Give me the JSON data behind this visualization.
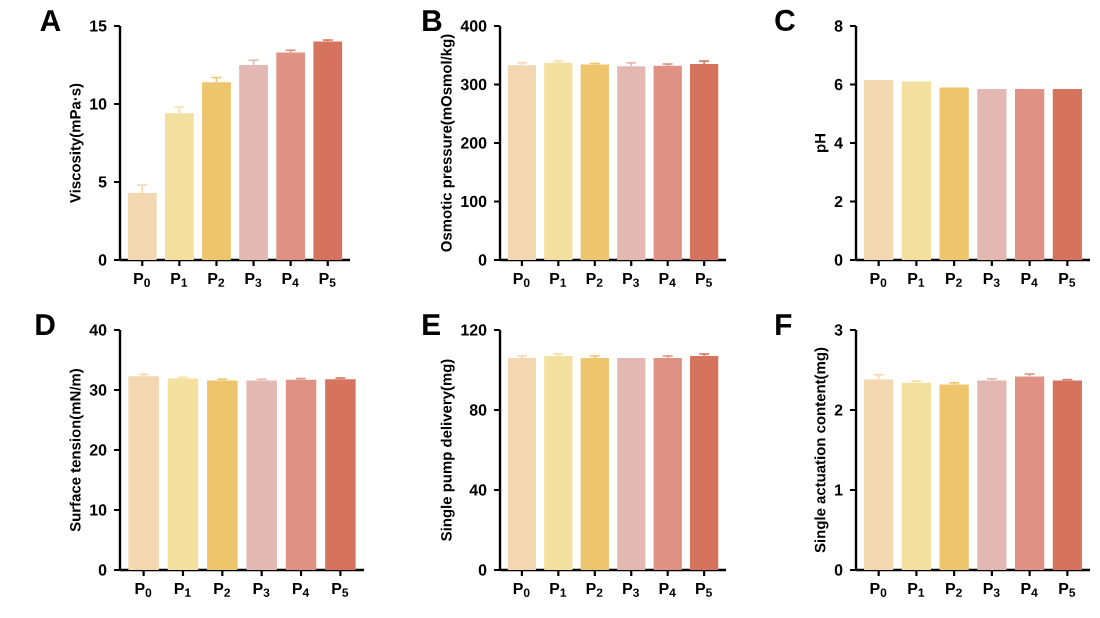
{
  "chart_data": [
    {
      "type": "bar",
      "title": "A",
      "ylabel": "Viscosity(mPa·s)",
      "categories": [
        "P$_{0}$",
        "P$_{1}$",
        "P$_{2}$",
        "P$_{3}$",
        "P$_{4}$",
        "P$_{5}$"
      ],
      "values": [
        4.3,
        9.4,
        11.4,
        12.5,
        13.3,
        14.0
      ],
      "errors": [
        0.5,
        0.4,
        0.3,
        0.3,
        0.15,
        0.1
      ],
      "colors": [
        "#f3d7b0",
        "#f3e09e",
        "#eec46c",
        "#e3b8b3",
        "#df9283",
        "#d6735f"
      ],
      "ylim": [
        0,
        15
      ],
      "yticks": [
        0,
        5,
        10,
        15
      ]
    },
    {
      "type": "bar",
      "title": "B",
      "ylabel": "Osmotic pressure(mOsmol/kg)",
      "categories": [
        "P$_{0}$",
        "P$_{1}$",
        "P$_{2}$",
        "P$_{3}$",
        "P$_{4}$",
        "P$_{5}$"
      ],
      "values": [
        333,
        337,
        334,
        331,
        332,
        335
      ],
      "errors": [
        4,
        3,
        2,
        6,
        3,
        5
      ],
      "colors": [
        "#f3d7b0",
        "#f3e09e",
        "#eec46c",
        "#e3b8b3",
        "#df9283",
        "#d6735f"
      ],
      "ylim": [
        0,
        400
      ],
      "yticks": [
        0,
        100,
        200,
        300,
        400
      ]
    },
    {
      "type": "bar",
      "title": "C",
      "ylabel": "pH",
      "categories": [
        "P$_{0}$",
        "P$_{1}$",
        "P$_{2}$",
        "P$_{3}$",
        "P$_{4}$",
        "P$_{5}$"
      ],
      "values": [
        6.15,
        6.1,
        5.9,
        5.85,
        5.85,
        5.85
      ],
      "colors": [
        "#f3d7b0",
        "#f3e09e",
        "#eec46c",
        "#e3b8b3",
        "#df9283",
        "#d6735f"
      ],
      "ylim": [
        0,
        8
      ],
      "yticks": [
        0,
        2,
        4,
        6,
        8
      ]
    },
    {
      "type": "bar",
      "title": "D",
      "ylabel": "Surface tension(mN/m)",
      "categories": [
        "P$_{0}$",
        "P$_{1}$",
        "P$_{2}$",
        "P$_{3}$",
        "P$_{4}$",
        "P$_{5}$"
      ],
      "values": [
        32.3,
        31.9,
        31.6,
        31.6,
        31.7,
        31.8
      ],
      "errors": [
        0.3,
        0.2,
        0.2,
        0.2,
        0.2,
        0.2
      ],
      "colors": [
        "#f3d7b0",
        "#f3e09e",
        "#eec46c",
        "#e3b8b3",
        "#df9283",
        "#d6735f"
      ],
      "ylim": [
        0,
        40
      ],
      "yticks": [
        0,
        10,
        20,
        30,
        40
      ]
    },
    {
      "type": "bar",
      "title": "E",
      "ylabel": "Single pump delivery(mg)",
      "categories": [
        "P$_{0}$",
        "P$_{1}$",
        "P$_{2}$",
        "P$_{3}$",
        "P$_{4}$",
        "P$_{5}$"
      ],
      "values": [
        106,
        107,
        106,
        106,
        106,
        107
      ],
      "errors": [
        1,
        1,
        1,
        null,
        1,
        1
      ],
      "colors": [
        "#f3d7b0",
        "#f3e09e",
        "#eec46c",
        "#e3b8b3",
        "#df9283",
        "#d6735f"
      ],
      "ylim": [
        0,
        120
      ],
      "yticks": [
        0,
        40,
        80,
        120
      ]
    },
    {
      "type": "bar",
      "title": "F",
      "ylabel": "Single actuation content(mg)",
      "categories": [
        "P$_{0}$",
        "P$_{1}$",
        "P$_{2}$",
        "P$_{3}$",
        "P$_{4}$",
        "P$_{5}$"
      ],
      "values": [
        2.38,
        2.34,
        2.32,
        2.37,
        2.42,
        2.37
      ],
      "errors": [
        0.06,
        0.02,
        0.02,
        0.02,
        0.03,
        0.01
      ],
      "colors": [
        "#f3d7b0",
        "#f3e09e",
        "#eec46c",
        "#e3b8b3",
        "#df9283",
        "#d6735f"
      ],
      "ylim": [
        0,
        3
      ],
      "yticks": [
        0,
        1,
        2,
        3
      ]
    }
  ]
}
